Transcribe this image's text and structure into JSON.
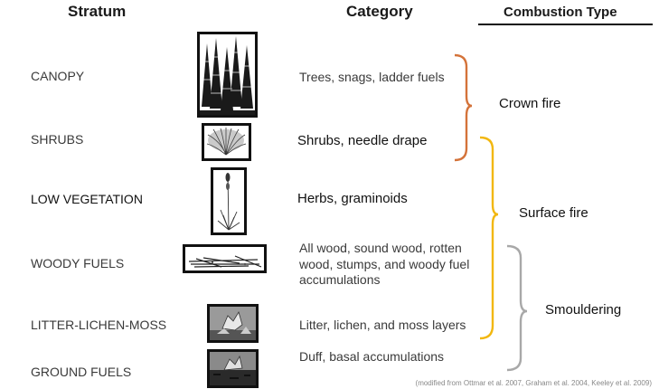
{
  "headers": {
    "stratum": "Stratum",
    "category": "Category",
    "combustion": "Combustion Type"
  },
  "rows": [
    {
      "stratum": "CANOPY",
      "category": "Trees, snags, ladder fuels",
      "icon": "conifer-trees-icon"
    },
    {
      "stratum": "SHRUBS",
      "category": "Shrubs, needle drape",
      "icon": "shrub-icon"
    },
    {
      "stratum": "LOW VEGETATION",
      "category": "Herbs, graminoids",
      "icon": "herb-grass-icon"
    },
    {
      "stratum": "WOODY FUELS",
      "category_lines": [
        "All wood, sound wood, rotten",
        "wood, stumps, and woody fuel",
        "accumulations"
      ],
      "icon": "fallen-logs-icon"
    },
    {
      "stratum": "LITTER-LICHEN-MOSS",
      "category": "Litter, lichen, and moss layers",
      "icon": "litter-leaf-icon"
    },
    {
      "stratum": "GROUND FUELS",
      "category": "Duff, basal accumulations",
      "icon": "duff-ground-icon"
    }
  ],
  "combustion_types": [
    {
      "label": "Crown fire",
      "color": "#D4733A"
    },
    {
      "label": "Surface fire",
      "color": "#F2B70F"
    },
    {
      "label": "Smouldering",
      "color": "#A8A8A8"
    }
  ],
  "credit": "(modified from Ottmar et al. 2007, Graham et al. 2004, Keeley et al. 2009)"
}
